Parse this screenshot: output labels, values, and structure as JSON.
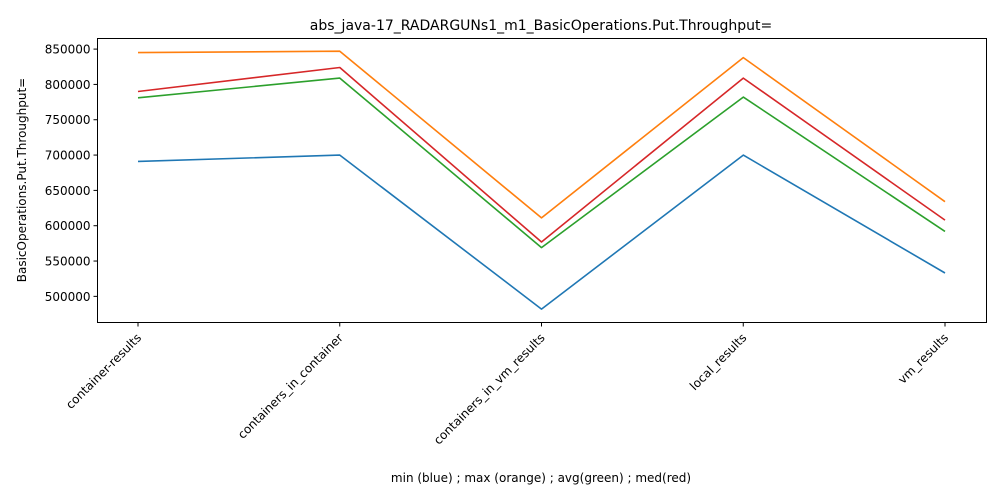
{
  "chart_data": {
    "type": "line",
    "title": "abs_java-17_RADARGUNs1_m1_BasicOperations.Put.Throughput=",
    "xlabel": "min (blue) ; max (orange) ; avg(green) ; med(red)",
    "ylabel": "BasicOperations.Put.Throughput=",
    "categories": [
      "container-results",
      "containers_in_container",
      "containers_in_vm_results",
      "local_results",
      "vm_results"
    ],
    "ylim": [
      463000,
      865000
    ],
    "yticks": [
      500000,
      550000,
      600000,
      650000,
      700000,
      750000,
      800000,
      850000
    ],
    "ytick_labels": [
      "500000",
      "550000",
      "600000",
      "650000",
      "700000",
      "750000",
      "800000",
      "850000"
    ],
    "grid": false,
    "series": [
      {
        "values": [
          691000,
          700000,
          482000,
          700000,
          533000
        ],
        "color": "#1f77b4"
      },
      {
        "values": [
          845000,
          847000,
          611000,
          838000,
          634000
        ],
        "color": "#ff7f0e"
      },
      {
        "values": [
          781000,
          809000,
          569000,
          782000,
          592000
        ],
        "color": "#2ca02c"
      },
      {
        "values": [
          790000,
          824000,
          577000,
          809000,
          608000
        ],
        "color": "#d62728"
      }
    ]
  }
}
